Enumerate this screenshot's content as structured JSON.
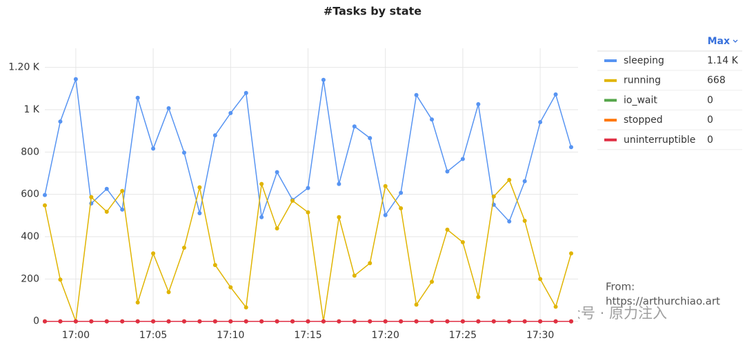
{
  "chart_data": {
    "type": "line",
    "title": "#Tasks by state",
    "categories": [
      null,
      null,
      "17:00",
      null,
      null,
      null,
      null,
      "17:05",
      null,
      null,
      null,
      null,
      "17:10",
      null,
      null,
      null,
      null,
      "17:15",
      null,
      null,
      null,
      null,
      "17:20",
      null,
      null,
      null,
      null,
      "17:25",
      null,
      null,
      null,
      null,
      "17:30",
      null,
      null
    ],
    "ylim": [
      -40,
      1290
    ],
    "yticks": [
      0,
      200,
      400,
      600,
      800,
      {
        "value": 1000,
        "label": "1 K"
      },
      {
        "value": 1200,
        "label": "1.20 K"
      }
    ],
    "grid": true,
    "legend_header": "Max",
    "series": [
      {
        "name": "sleeping",
        "color": "#5794f2",
        "max_label": "1.14 K",
        "values": [
          597,
          944,
          1144,
          557,
          626,
          528,
          1056,
          816,
          1007,
          797,
          511,
          879,
          984,
          1079,
          492,
          705,
          574,
          630,
          1141,
          649,
          921,
          866,
          502,
          607,
          1069,
          954,
          708,
          767,
          1026,
          551,
          472,
          662,
          941,
          1072,
          823
        ]
      },
      {
        "name": "running",
        "color": "#e0b400",
        "max_label": "668",
        "values": [
          548,
          197,
          0,
          587,
          518,
          616,
          89,
          321,
          138,
          348,
          633,
          266,
          161,
          66,
          649,
          439,
          570,
          515,
          0,
          492,
          216,
          275,
          639,
          534,
          79,
          187,
          433,
          374,
          115,
          590,
          668,
          475,
          200,
          69,
          321
        ]
      },
      {
        "name": "io_wait",
        "color": "#56a64b",
        "max_label": "0",
        "values": [
          0,
          0,
          0,
          0,
          0,
          0,
          0,
          0,
          0,
          0,
          0,
          0,
          0,
          0,
          0,
          0,
          0,
          0,
          0,
          0,
          0,
          0,
          0,
          0,
          0,
          0,
          0,
          0,
          0,
          0,
          0,
          0,
          0,
          0,
          0
        ]
      },
      {
        "name": "stopped",
        "color": "#ff780a",
        "max_label": "0",
        "values": [
          0,
          0,
          0,
          0,
          0,
          0,
          0,
          0,
          0,
          0,
          0,
          0,
          0,
          0,
          0,
          0,
          0,
          0,
          0,
          0,
          0,
          0,
          0,
          0,
          0,
          0,
          0,
          0,
          0,
          0,
          0,
          0,
          0,
          0,
          0
        ]
      },
      {
        "name": "uninterruptible",
        "color": "#e02f44",
        "max_label": "0",
        "values": [
          0,
          0,
          0,
          0,
          0,
          0,
          0,
          0,
          0,
          0,
          0,
          0,
          0,
          0,
          0,
          0,
          0,
          0,
          0,
          0,
          0,
          0,
          0,
          0,
          0,
          0,
          0,
          0,
          0,
          0,
          0,
          0,
          0,
          0,
          0
        ]
      }
    ],
    "annotations": [
      "From:",
      "https://arthurchiao.art",
      "公众号 · 原力注入"
    ]
  }
}
